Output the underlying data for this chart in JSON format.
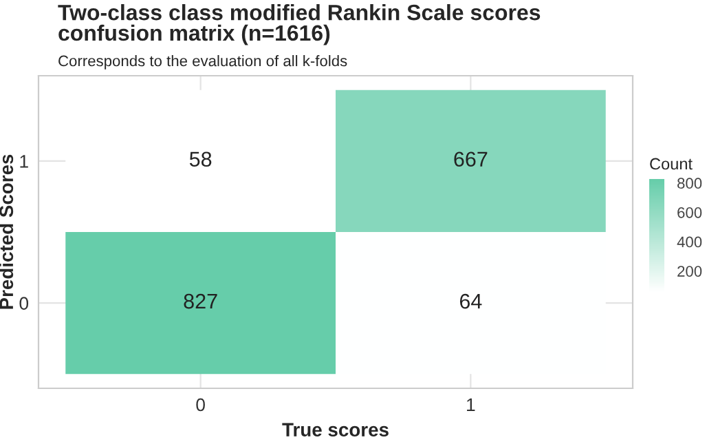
{
  "chart_data": {
    "type": "heatmap",
    "title": "Two-class class modified Rankin Scale scores\nconfusion matrix (n=1616)",
    "subtitle": "Corresponds to the evaluation of all k-folds",
    "xlabel": "True scores",
    "ylabel": "Predicted Scores",
    "clabel": "Count",
    "categories": [
      "0",
      "1"
    ],
    "y_categories": [
      "1",
      "0"
    ],
    "cells": [
      [
        58,
        667
      ],
      [
        827,
        64
      ]
    ],
    "clim": [
      58,
      827
    ],
    "cticks": [
      200,
      400,
      600,
      800
    ],
    "colors": [
      "#ffffff",
      "#66cdaa"
    ],
    "data_labels": true,
    "grid": true
  }
}
